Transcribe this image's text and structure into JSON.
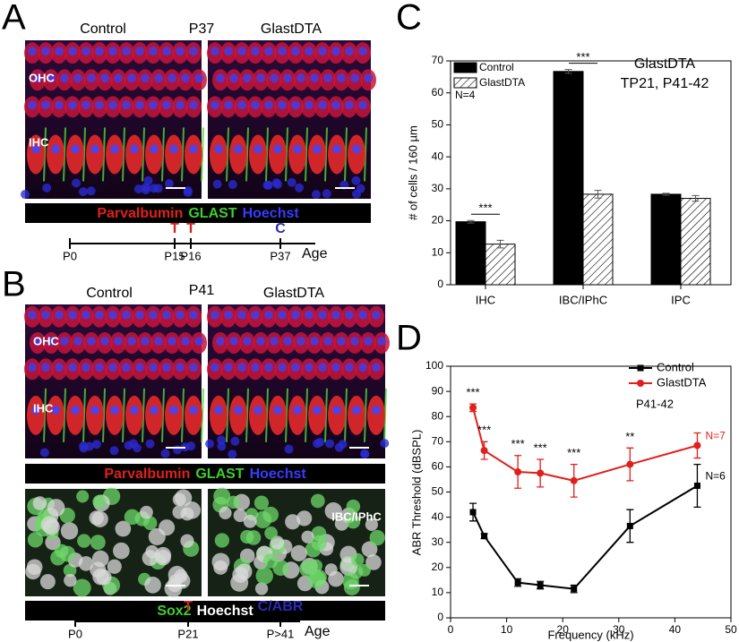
{
  "panels": {
    "a": {
      "letter": "A",
      "stage": "P37",
      "left_title": "Control",
      "right_title": "GlastDTA",
      "ohc": "OHC",
      "ihc": "IHC",
      "stain": [
        "Parvalbumin",
        "GLAST",
        "Hoechst"
      ],
      "timeline": {
        "ticks": [
          "P0",
          "P15",
          "P16",
          "P37"
        ],
        "marks": [
          null,
          "T",
          "T",
          "C"
        ],
        "axis": "Age"
      }
    },
    "b": {
      "letter": "B",
      "stage": "P41",
      "left_title": "Control",
      "right_title": "GlastDTA",
      "ohc": "OHC",
      "ihc": "IHC",
      "stain": [
        "Parvalbumin",
        "GLAST",
        "Hoechst"
      ],
      "stain2": [
        "Sox2",
        "Hoechst"
      ],
      "image_label": "IBC/IPhC",
      "timeline": {
        "ticks": [
          "P0",
          "P21",
          "P>41"
        ],
        "marks": [
          null,
          "T",
          "C/ABR"
        ],
        "axis": "Age"
      }
    }
  },
  "chart_data": [
    {
      "type": "bar",
      "letter": "C",
      "ylabel": "# of cells / 160 µm",
      "categories": [
        "IHC",
        "IBC/IPhC",
        "IPC"
      ],
      "series": [
        {
          "name": "Control",
          "color": "#000000",
          "values": [
            19.7,
            66.7,
            28.3
          ],
          "errors": [
            0.4,
            0.6,
            0.3
          ]
        },
        {
          "name": "GlastDTA",
          "color": "#ffffff",
          "pattern": "hatch",
          "values": [
            12.7,
            28.3,
            27.0
          ],
          "errors": [
            1.2,
            1.2,
            0.9
          ]
        }
      ],
      "ylim": [
        0,
        70
      ],
      "yticks": [
        0,
        10,
        20,
        30,
        40,
        50,
        60,
        70
      ],
      "significance": [
        "***",
        "***",
        null
      ],
      "annotations": [
        "GlastDTA",
        "TP21, P41-42"
      ],
      "sample_size": "N=4"
    },
    {
      "type": "line",
      "letter": "D",
      "xlabel": "Frequency (kHz)",
      "ylabel": "ABR Threshold (dBSPL)",
      "x": [
        4,
        6,
        12,
        16,
        22,
        32,
        44
      ],
      "series": [
        {
          "name": "Control",
          "color": "#000000",
          "marker": "square",
          "values": [
            42,
            32.5,
            14,
            13,
            11.5,
            36.5,
            52.5
          ],
          "errors": [
            3.5,
            1,
            1.5,
            1.5,
            1.5,
            6.5,
            8.5
          ],
          "sample_size": "N=6"
        },
        {
          "name": "GlastDTA",
          "color": "#e0201b",
          "marker": "circle",
          "values": [
            83.5,
            66.5,
            58,
            57.5,
            54.5,
            61,
            68.5
          ],
          "errors": [
            1.5,
            3.5,
            6.5,
            5.5,
            6.5,
            6.5,
            5
          ],
          "sample_size": "N=7"
        }
      ],
      "xlim": [
        0,
        50
      ],
      "xticks": [
        0,
        10,
        20,
        30,
        40,
        50
      ],
      "ylim": [
        0,
        100
      ],
      "yticks": [
        0,
        10,
        20,
        30,
        40,
        50,
        60,
        70,
        80,
        90,
        100
      ],
      "significance": [
        "***",
        "***",
        "***",
        "***",
        "***",
        "**",
        null
      ],
      "annotation": "P41-42"
    }
  ]
}
